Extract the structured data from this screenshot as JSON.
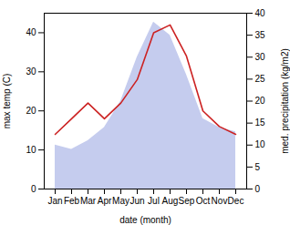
{
  "chart_data": {
    "type": "line",
    "categories": [
      "Jan",
      "Feb",
      "Mar",
      "Apr",
      "May",
      "Jun",
      "Jul",
      "Aug",
      "Sep",
      "Oct",
      "Nov",
      "Dec"
    ],
    "xlabel": "date (month)",
    "ylabel": "max temp (C)",
    "y2label": "med. precipitation (kg/m2)",
    "series": [
      {
        "type": "area",
        "axis": "y2",
        "color": "#c5ccee",
        "values": [
          10,
          9,
          11,
          14,
          20,
          30,
          38,
          35,
          26,
          16,
          14,
          13
        ]
      },
      {
        "type": "line",
        "color": "#cc2222",
        "values": [
          14,
          18,
          22,
          18,
          22,
          28,
          40,
          42,
          34,
          20,
          16,
          14
        ]
      }
    ],
    "ylim": [
      0,
      45
    ],
    "yticks": [
      0,
      10,
      20,
      30,
      40
    ],
    "y2lim": [
      0,
      40
    ],
    "y2ticks": [
      0,
      5,
      10,
      15,
      20,
      25,
      30,
      35,
      40
    ],
    "grid": false
  }
}
